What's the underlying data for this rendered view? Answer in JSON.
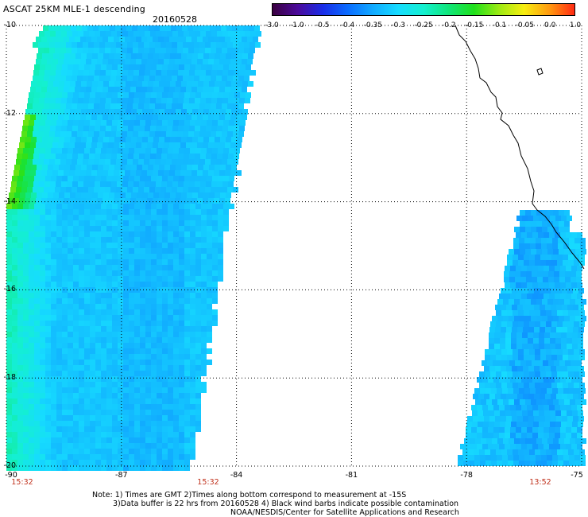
{
  "header": {
    "title": "ASCAT 25KM MLE-1 descending",
    "date": "20160528"
  },
  "colorbar": {
    "ticks": [
      "-3.0",
      "-1.0",
      "-0.5",
      "-0.4",
      "-0.35",
      "-0.3",
      "-0.25",
      "-0.2",
      "-0.15",
      "-0.1",
      "-0.05",
      "0.0",
      "1.0"
    ],
    "colors": [
      "#3a0040",
      "#4b0a9a",
      "#1a2de8",
      "#0a6cff",
      "#11aaff",
      "#16dcff",
      "#14f0d0",
      "#10e67a",
      "#1fe01b",
      "#9cea13",
      "#f7ee10",
      "#ff9a10",
      "#ff2a12"
    ]
  },
  "axes": {
    "lat_labels": [
      "-10",
      "-12",
      "-14",
      "-16",
      "-18",
      "-20"
    ],
    "lon_labels": [
      "-90",
      "-87",
      "-84",
      "-81",
      "-78",
      "-75"
    ]
  },
  "swath_times": [
    "15:32",
    "15:32",
    "13:52"
  ],
  "notes": {
    "line1": "Note: 1) Times are GMT 2)Times along bottom correspond to measurement at -15S",
    "line2": "3)Data buffer is 22 hrs from 20160528 4) Black wind barbs indicate possible contamination",
    "line3": "NOAA/NESDIS/Center for Satellite Applications and Research"
  }
}
